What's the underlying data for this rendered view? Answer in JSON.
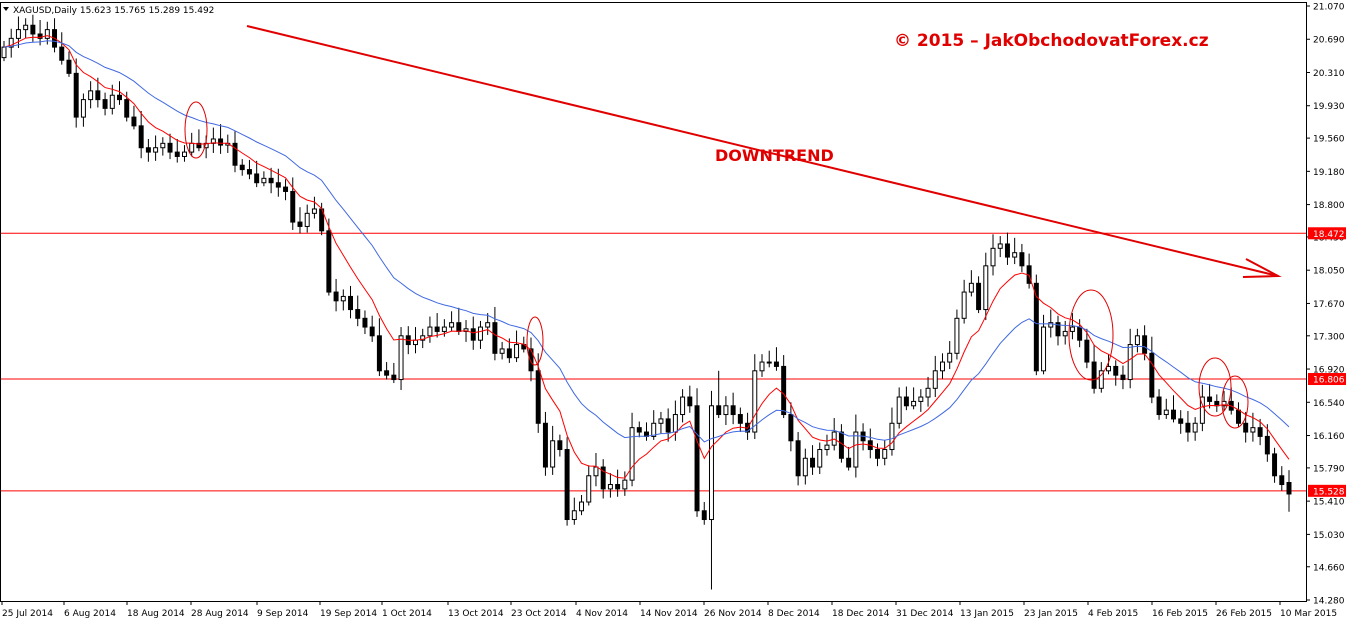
{
  "header": {
    "symbol_line": "XAGUSD,Daily  15.623 15.765 15.289 15.492"
  },
  "colors": {
    "background": "#ffffff",
    "candle_up_fill": "#ffffff",
    "candle_down_fill": "#000000",
    "ma_fast": "#ff0000",
    "ma_slow": "#4169e1",
    "levels": "#ff0000",
    "annotation": "#e00000"
  },
  "annotations": {
    "copyright": "© 2015 – JakObchodovatForex.cz",
    "trend_label": "DOWNTREND"
  },
  "chart_data": {
    "type": "candlestick",
    "title": "XAGUSD,Daily",
    "ylim": [
      14.28,
      21.07
    ],
    "y_ticks": [
      "21.070",
      "20.690",
      "20.310",
      "19.930",
      "19.560",
      "19.180",
      "18.800",
      "18.430",
      "18.050",
      "17.670",
      "17.300",
      "16.920",
      "16.540",
      "16.160",
      "15.790",
      "15.410",
      "15.030",
      "14.660",
      "14.280"
    ],
    "x_ticks": [
      "25 Jul 2014",
      "6 Aug 2014",
      "18 Aug 2014",
      "28 Aug 2014",
      "9 Sep 2014",
      "19 Sep 2014",
      "1 Oct 2014",
      "13 Oct 2014",
      "23 Oct 2014",
      "4 Nov 2014",
      "14 Nov 2014",
      "26 Nov 2014",
      "8 Dec 2014",
      "18 Dec 2014",
      "31 Dec 2014",
      "13 Jan 2015",
      "23 Jan 2015",
      "4 Feb 2015",
      "16 Feb 2015",
      "26 Feb 2015",
      "10 Mar 2015"
    ],
    "last_bar": {
      "open": 15.623,
      "high": 15.765,
      "low": 15.289,
      "close": 15.492
    },
    "horizontal_levels": [
      {
        "value": 18.472,
        "label": "18.472"
      },
      {
        "value": 16.806,
        "label": "16.806"
      },
      {
        "value": 15.528,
        "label": "15.528"
      }
    ],
    "closes": [
      20.6,
      20.7,
      20.8,
      20.85,
      20.75,
      20.7,
      20.8,
      20.6,
      20.45,
      20.3,
      19.8,
      20.0,
      20.1,
      20.0,
      19.9,
      20.05,
      20.0,
      19.8,
      19.7,
      19.45,
      19.4,
      19.45,
      19.5,
      19.4,
      19.35,
      19.4,
      19.5,
      19.45,
      19.5,
      19.55,
      19.48,
      19.5,
      19.25,
      19.2,
      19.15,
      19.05,
      19.1,
      19.05,
      19.0,
      18.95,
      18.6,
      18.55,
      18.7,
      18.75,
      18.5,
      17.8,
      17.7,
      17.75,
      17.6,
      17.5,
      17.4,
      17.3,
      16.9,
      16.85,
      16.8,
      17.3,
      17.2,
      17.25,
      17.3,
      17.4,
      17.35,
      17.4,
      17.45,
      17.35,
      17.38,
      17.25,
      17.4,
      17.45,
      17.1,
      17.15,
      17.05,
      17.2,
      17.15,
      16.9,
      16.3,
      15.8,
      16.1,
      16.0,
      15.2,
      15.3,
      15.4,
      15.7,
      15.8,
      15.55,
      15.6,
      15.55,
      15.65,
      16.25,
      16.2,
      16.15,
      16.3,
      16.35,
      16.2,
      16.4,
      16.6,
      16.5,
      15.3,
      15.2,
      16.5,
      16.4,
      16.5,
      16.4,
      16.3,
      16.2,
      16.9,
      17.0,
      17.0,
      16.95,
      16.4,
      16.1,
      15.7,
      15.9,
      15.8,
      16.0,
      16.05,
      16.2,
      15.9,
      15.8,
      16.2,
      16.1,
      16.0,
      15.9,
      16.0,
      16.3,
      16.6,
      16.5,
      16.55,
      16.6,
      16.7,
      16.9,
      17.0,
      17.1,
      17.5,
      17.8,
      17.9,
      17.6,
      18.1,
      18.3,
      18.35,
      18.2,
      18.25,
      18.1,
      17.9,
      16.9,
      17.4,
      17.45,
      17.3,
      17.35,
      17.4,
      17.25,
      17.0,
      16.7,
      16.9,
      16.95,
      16.85,
      16.8,
      17.2,
      17.3,
      17.1,
      16.6,
      16.4,
      16.45,
      16.35,
      16.3,
      16.2,
      16.3,
      16.6,
      16.55,
      16.5,
      16.55,
      16.45,
      16.3,
      16.2,
      16.25,
      16.15,
      15.95,
      15.7,
      15.6,
      15.49
    ]
  }
}
